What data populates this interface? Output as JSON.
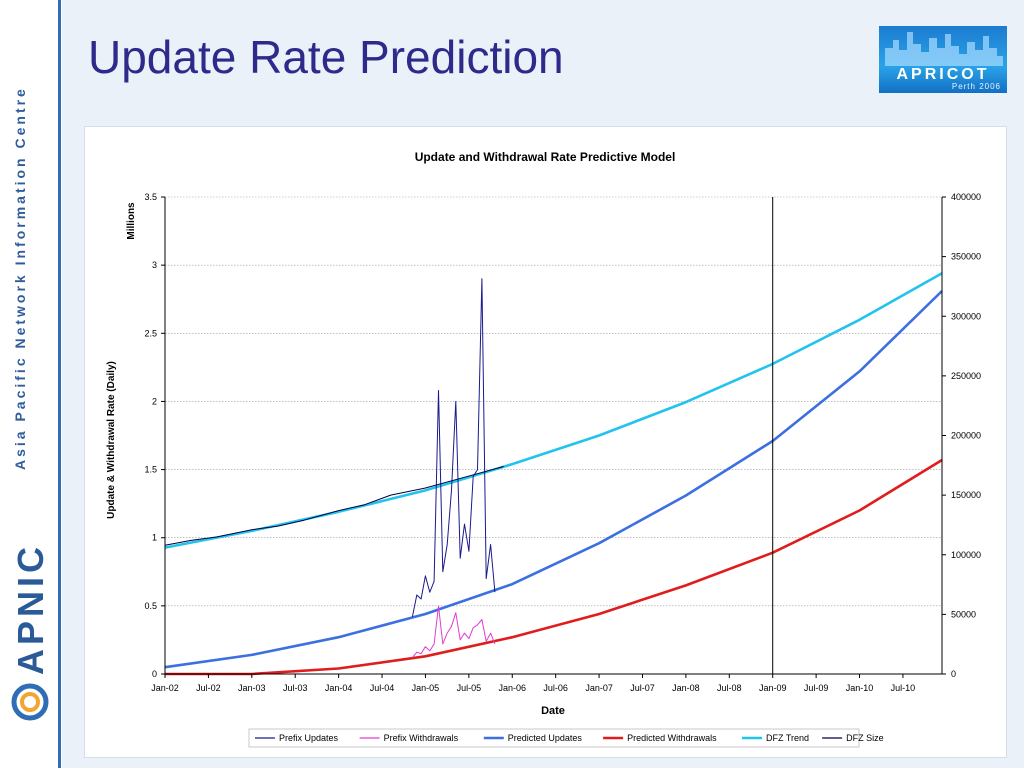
{
  "slide": {
    "title": "Update Rate Prediction",
    "sidebar_text": "Asia Pacific Network Information Centre",
    "sidebar_logo": "APNIC",
    "event_logo": "APRICOT",
    "event_sub": "Perth 2006"
  },
  "colors": {
    "title": "#2e2a8c",
    "sidebar_accent": "#2f6db5",
    "prefix_updates": "#1a1a8c",
    "prefix_withdrawals": "#e23cd0",
    "predicted_updates": "#3c6fe0",
    "predicted_withdrawals": "#e01c1c",
    "dfz_trend": "#22c3ec",
    "dfz_size": "#000040"
  },
  "chart_data": {
    "type": "line",
    "title": "Update and Withdrawal Rate Predictive Model",
    "xlabel": "Date",
    "ylabel": "Update & Withdrawal Rate (Daily)",
    "y_multiplier_label": "Millions",
    "ylim": [
      0,
      3.5
    ],
    "y2lim": [
      0,
      400000
    ],
    "yticks": [
      "0",
      "0.5",
      "1",
      "1.5",
      "2",
      "2.5",
      "3",
      "3.5"
    ],
    "y2ticks": [
      "0",
      "50000",
      "100000",
      "150000",
      "200000",
      "250000",
      "300000",
      "350000",
      "400000"
    ],
    "xticks": [
      "Jan-02",
      "Jul-02",
      "Jan-03",
      "Jul-03",
      "Jan-04",
      "Jul-04",
      "Jan-05",
      "Jul-05",
      "Jan-06",
      "Jul-06",
      "Jan-07",
      "Jul-07",
      "Jan-08",
      "Jul-08",
      "Jan-09",
      "Jul-09",
      "Jan-10",
      "Jul-10"
    ],
    "xrange_years": [
      2002.0,
      2010.95
    ],
    "marker_line_x": 2009.0,
    "grid": true,
    "legend_position": "bottom",
    "series": [
      {
        "name": "Prefix Updates",
        "axis": "left",
        "x": [
          2004.85,
          2004.9,
          2004.95,
          2005.0,
          2005.05,
          2005.1,
          2005.15,
          2005.2,
          2005.25,
          2005.3,
          2005.35,
          2005.4,
          2005.45,
          2005.5,
          2005.55,
          2005.6,
          2005.65,
          2005.7,
          2005.75,
          2005.8
        ],
        "y": [
          0.42,
          0.58,
          0.55,
          0.72,
          0.6,
          0.68,
          2.08,
          0.75,
          0.95,
          1.35,
          2.0,
          0.85,
          1.1,
          0.9,
          1.45,
          1.5,
          2.9,
          0.7,
          0.95,
          0.6
        ]
      },
      {
        "name": "Prefix Withdrawals",
        "axis": "left",
        "x": [
          2004.85,
          2004.9,
          2004.95,
          2005.0,
          2005.05,
          2005.1,
          2005.15,
          2005.2,
          2005.25,
          2005.3,
          2005.35,
          2005.4,
          2005.45,
          2005.5,
          2005.55,
          2005.6,
          2005.65,
          2005.7,
          2005.75,
          2005.8
        ],
        "y": [
          0.12,
          0.16,
          0.15,
          0.2,
          0.17,
          0.22,
          0.5,
          0.22,
          0.3,
          0.35,
          0.45,
          0.25,
          0.3,
          0.26,
          0.34,
          0.36,
          0.4,
          0.24,
          0.3,
          0.22
        ]
      },
      {
        "name": "Predicted Updates",
        "axis": "left",
        "x": [
          2002.0,
          2003.0,
          2004.0,
          2005.0,
          2006.0,
          2007.0,
          2008.0,
          2009.0,
          2010.0,
          2010.95
        ],
        "y": [
          0.05,
          0.14,
          0.27,
          0.44,
          0.66,
          0.96,
          1.31,
          1.71,
          2.22,
          2.81
        ]
      },
      {
        "name": "Predicted Withdrawals",
        "axis": "left",
        "x": [
          2002.0,
          2003.0,
          2004.0,
          2005.0,
          2006.0,
          2007.0,
          2008.0,
          2009.0,
          2010.0,
          2010.95
        ],
        "y": [
          0.0,
          0.0,
          0.04,
          0.13,
          0.27,
          0.44,
          0.65,
          0.89,
          1.2,
          1.57
        ]
      },
      {
        "name": "DFZ Trend",
        "axis": "right",
        "x": [
          2002.0,
          2003.0,
          2004.0,
          2005.0,
          2006.0,
          2007.0,
          2008.0,
          2009.0,
          2010.0,
          2010.95
        ],
        "y": [
          106000,
          120000,
          136000,
          154000,
          176000,
          200000,
          228000,
          260000,
          297000,
          336000
        ]
      },
      {
        "name": "DFZ Size",
        "axis": "right",
        "x": [
          2002.0,
          2002.3,
          2002.6,
          2003.0,
          2003.3,
          2003.6,
          2004.0,
          2004.3,
          2004.6,
          2005.0,
          2005.3,
          2005.6,
          2005.9
        ],
        "y": [
          108000,
          112000,
          115000,
          121000,
          124000,
          129000,
          137000,
          142000,
          150000,
          156000,
          162000,
          168000,
          174000
        ]
      }
    ]
  }
}
